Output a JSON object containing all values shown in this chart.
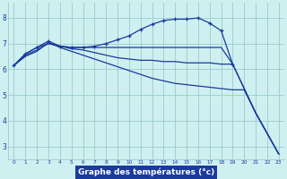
{
  "background_color": "#cff0f0",
  "plot_bg_color": "#cff0f0",
  "grid_color": "#99cccc",
  "line_color": "#1a3a9e",
  "xlabel_bg": "#1a3a9e",
  "xlabel_fg": "#ffffff",
  "title": "Graphe des températures (°c)",
  "xlim": [
    -0.5,
    23.5
  ],
  "ylim": [
    2.5,
    8.6
  ],
  "xticks": [
    0,
    1,
    2,
    3,
    4,
    5,
    6,
    7,
    8,
    9,
    10,
    11,
    12,
    13,
    14,
    15,
    16,
    17,
    18,
    19,
    20,
    21,
    22,
    23
  ],
  "yticks": [
    3,
    4,
    5,
    6,
    7,
    8
  ],
  "series": [
    {
      "x": [
        0,
        1,
        2,
        3,
        4,
        5,
        6,
        7,
        8,
        9,
        10,
        11,
        12,
        13,
        14,
        15,
        16,
        17,
        18,
        19
      ],
      "y": [
        6.15,
        6.6,
        6.85,
        7.1,
        6.9,
        6.85,
        6.85,
        6.9,
        7.0,
        7.15,
        7.3,
        7.55,
        7.75,
        7.9,
        7.95,
        7.95,
        8.0,
        7.8,
        7.5,
        6.2
      ],
      "has_markers": true
    },
    {
      "x": [
        0,
        1,
        2,
        3,
        4,
        5,
        6,
        7,
        8,
        9,
        10,
        11,
        12,
        13,
        14,
        15,
        16,
        17,
        18,
        19,
        20,
        21,
        22,
        23
      ],
      "y": [
        6.15,
        6.6,
        6.85,
        7.0,
        6.9,
        6.85,
        6.85,
        6.85,
        6.85,
        6.85,
        6.85,
        6.85,
        6.85,
        6.85,
        6.85,
        6.85,
        6.85,
        6.85,
        6.85,
        6.2,
        5.25,
        4.3,
        3.5,
        2.7
      ],
      "has_markers": false
    },
    {
      "x": [
        0,
        1,
        2,
        3,
        4,
        5,
        6,
        7,
        8,
        9,
        10,
        11,
        12,
        13,
        14,
        15,
        16,
        17,
        18,
        19,
        20,
        21,
        22,
        23
      ],
      "y": [
        6.15,
        6.55,
        6.75,
        7.0,
        6.9,
        6.8,
        6.75,
        6.65,
        6.55,
        6.45,
        6.4,
        6.35,
        6.35,
        6.3,
        6.3,
        6.25,
        6.25,
        6.25,
        6.2,
        6.2,
        5.25,
        4.3,
        3.5,
        2.7
      ],
      "has_markers": false
    },
    {
      "x": [
        0,
        1,
        2,
        3,
        4,
        5,
        6,
        7,
        8,
        9,
        10,
        11,
        12,
        13,
        14,
        15,
        16,
        17,
        18,
        19,
        20,
        21,
        22,
        23
      ],
      "y": [
        6.15,
        6.5,
        6.7,
        7.05,
        6.85,
        6.7,
        6.55,
        6.4,
        6.25,
        6.1,
        5.95,
        5.8,
        5.65,
        5.55,
        5.45,
        5.4,
        5.35,
        5.3,
        5.25,
        5.2,
        5.2,
        4.3,
        3.5,
        2.7
      ],
      "has_markers": false
    }
  ]
}
